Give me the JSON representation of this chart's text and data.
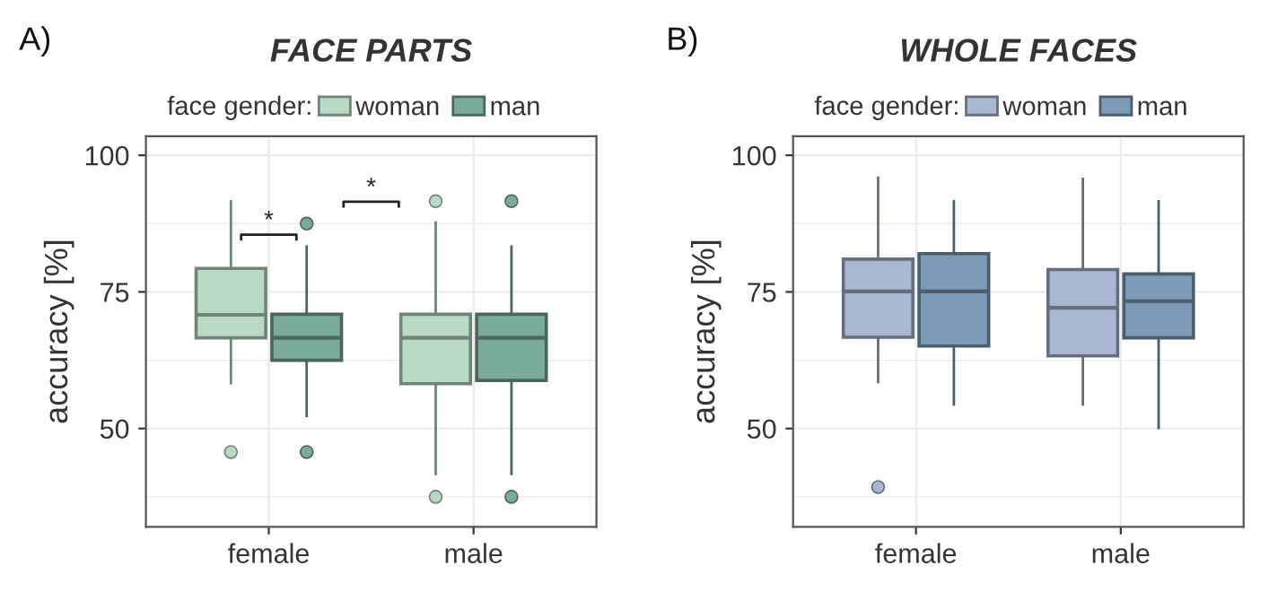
{
  "chart_data": [
    {
      "type": "box",
      "title": "FACE PARTS",
      "ylabel": "accuracy [%]",
      "legend_title": "face gender:",
      "legend": "top",
      "grid": true,
      "categories": [
        "female",
        "male"
      ],
      "ylim": [
        32,
        103.5
      ],
      "yticks": [
        50,
        75,
        100
      ],
      "annotations": [
        "A)",
        "*",
        "*"
      ],
      "series": [
        {
          "name": "woman",
          "color": "#b9dbc6",
          "boxes": [
            {
              "low": 58.3,
              "q1": 66.6,
              "median": 70.8,
              "q3": 79.3,
              "high": 91.6,
              "outliers": [
                45.7
              ]
            },
            {
              "low": 41.7,
              "q1": 58.2,
              "median": 66.6,
              "q3": 70.9,
              "high": 87.7,
              "outliers": [
                91.6,
                37.5
              ]
            }
          ]
        },
        {
          "name": "man",
          "color": "#7aab9b",
          "boxes": [
            {
              "low": 52.3,
              "q1": 62.5,
              "median": 66.6,
              "q3": 70.9,
              "high": 83.3,
              "outliers": [
                87.5,
                45.7
              ]
            },
            {
              "low": 41.7,
              "q1": 58.8,
              "median": 66.6,
              "q3": 70.9,
              "high": 83.3,
              "outliers": [
                91.6,
                37.5
              ]
            }
          ]
        }
      ]
    },
    {
      "type": "box",
      "title": "WHOLE FACES",
      "ylabel": "accuracy [%]",
      "legend_title": "face gender:",
      "legend": "top",
      "grid": true,
      "categories": [
        "female",
        "male"
      ],
      "ylim": [
        32,
        103.5
      ],
      "yticks": [
        50,
        75,
        100
      ],
      "annotations": [
        "B)"
      ],
      "series": [
        {
          "name": "woman",
          "color": "#a8b7d2",
          "boxes": [
            {
              "low": 58.5,
              "q1": 66.7,
              "median": 75.1,
              "q3": 81.0,
              "high": 95.9,
              "outliers": [
                39.3
              ]
            },
            {
              "low": 54.4,
              "q1": 63.3,
              "median": 72.1,
              "q3": 79.1,
              "high": 95.7
            }
          ]
        },
        {
          "name": "man",
          "color": "#7b9bb9",
          "boxes": [
            {
              "low": 54.4,
              "q1": 65.1,
              "median": 75.1,
              "q3": 82.0,
              "high": 91.6
            },
            {
              "low": 50.1,
              "q1": 66.6,
              "median": 73.3,
              "q3": 78.3,
              "high": 91.6
            }
          ]
        }
      ]
    }
  ]
}
